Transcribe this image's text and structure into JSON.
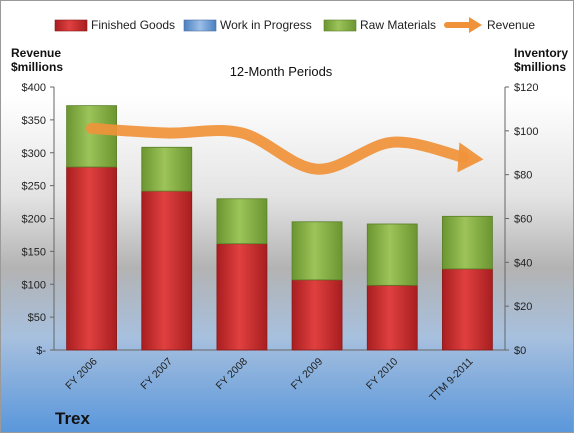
{
  "chart_data": {
    "type": "bar",
    "title": "12-Month Periods",
    "company": "Trex",
    "categories": [
      "FY 2006",
      "FY 2007",
      "FY 2008",
      "FY 2009",
      "FY 2010",
      "TTM 9-2011"
    ],
    "left_axis": {
      "label_line1": "Revenue",
      "label_line2": "$millions",
      "ylim": [
        0,
        400
      ],
      "ticks": [
        0,
        50,
        100,
        150,
        200,
        250,
        300,
        350,
        400
      ],
      "tick_labels": [
        "$-",
        "$50",
        "$100",
        "$150",
        "$200",
        "$250",
        "$300",
        "$350",
        "$400"
      ]
    },
    "right_axis": {
      "label_line1": "Inventory",
      "label_line2": "$millions",
      "ylim": [
        0,
        120
      ],
      "ticks": [
        0,
        20,
        40,
        60,
        80,
        100,
        120
      ],
      "tick_labels": [
        "$0",
        "$20",
        "$40",
        "$60",
        "$80",
        "$100",
        "$120"
      ]
    },
    "series": [
      {
        "name": "Finished Goods",
        "axis": "right",
        "stacked": true,
        "color": "#c0282a",
        "values": [
          83.5,
          72.5,
          48.5,
          32,
          29.5,
          37
        ]
      },
      {
        "name": "Work in Progress",
        "axis": "right",
        "stacked": true,
        "color": "#6d9bd1",
        "values": [
          0,
          0,
          0,
          0,
          0,
          0
        ]
      },
      {
        "name": "Raw Materials",
        "axis": "right",
        "stacked": true,
        "color": "#7ea83c",
        "values": [
          28,
          20,
          20.5,
          26.5,
          28,
          24
        ]
      },
      {
        "name": "Revenue",
        "axis": "left",
        "type": "line",
        "color": "#f0923a",
        "values": [
          337,
          330,
          330,
          275,
          316,
          293
        ]
      }
    ],
    "legend_position": "top",
    "grid": false
  }
}
